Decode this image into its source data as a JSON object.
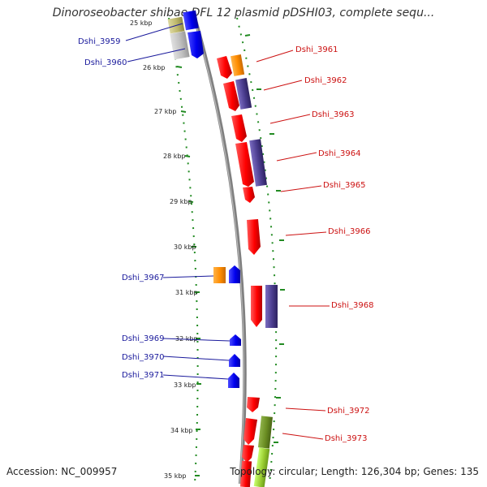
{
  "title": "Dinoroseobacter shibae DFL 12 plasmid pDSHI03, complete sequ...",
  "footer": {
    "accession": "Accession: NC_009957",
    "summary": "Topology: circular; Length: 126,304 bp; Genes: 135"
  },
  "ticks": [
    "25 kbp",
    "26 kbp",
    "27 kbp",
    "28 kbp",
    "29 kbp",
    "30 kbp",
    "31 kbp",
    "32 kbp",
    "33 kbp",
    "34 kbp",
    "35 kbp"
  ],
  "genes_left": [
    "Dshi_3959",
    "Dshi_3960",
    "Dshi_3967",
    "Dshi_3969",
    "Dshi_3970",
    "Dshi_3971"
  ],
  "genes_right": [
    "Dshi_3961",
    "Dshi_3962",
    "Dshi_3963",
    "Dshi_3964",
    "Dshi_3965",
    "Dshi_3966",
    "Dshi_3968",
    "Dshi_3972",
    "Dshi_3973"
  ],
  "colors": {
    "cds": "#ff0000",
    "cog_purple": "#4b3d8f",
    "cog_orange": "#ff8c00",
    "blue_gene": "#0000ee",
    "olive": "#6b8e23",
    "lime": "#9acd32",
    "tan": "#bdb76b",
    "grey": "#c0c0c0",
    "backbone": "#808080",
    "dots": "#228b22"
  }
}
